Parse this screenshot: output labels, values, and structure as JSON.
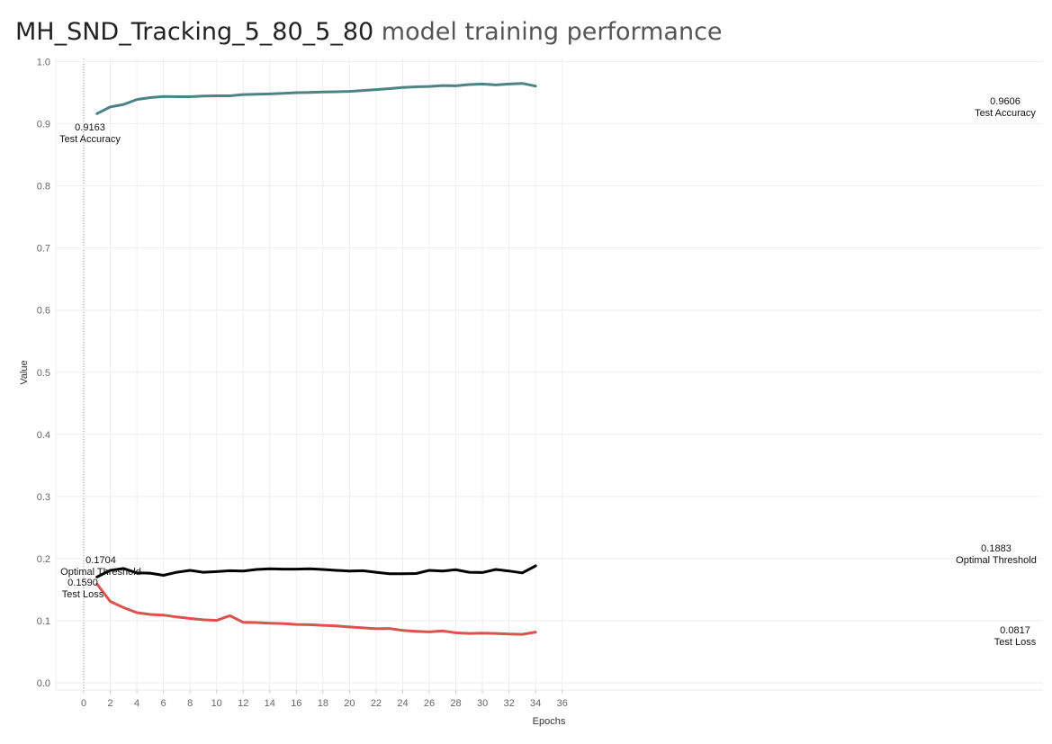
{
  "title_main": "MH_SND_Tracking_5_80_5_80",
  "title_rest": " model training performance",
  "chart_data": {
    "type": "line",
    "xlabel": "Epochs",
    "ylabel": "Value",
    "xlim": [
      -2,
      36.5
    ],
    "ylim": [
      -0.01,
      1.01
    ],
    "xticks": [
      0,
      2,
      4,
      6,
      8,
      10,
      12,
      14,
      16,
      18,
      20,
      22,
      24,
      26,
      28,
      30,
      32,
      34,
      36
    ],
    "yticks": [
      0.0,
      0.1,
      0.2,
      0.3,
      0.4,
      0.5,
      0.6,
      0.7,
      0.8,
      0.9,
      1.0
    ],
    "ytick_labels": [
      "0.0",
      "0.1",
      "0.2",
      "0.3",
      "0.4",
      "0.5",
      "0.6",
      "0.7",
      "0.8",
      "0.9",
      "1.0"
    ],
    "grid": true,
    "x": [
      1,
      2,
      3,
      4,
      5,
      6,
      7,
      8,
      9,
      10,
      11,
      12,
      13,
      14,
      15,
      16,
      17,
      18,
      19,
      20,
      21,
      22,
      23,
      24,
      25,
      26,
      27,
      28,
      29,
      30,
      31,
      32,
      33,
      34
    ],
    "series": [
      {
        "name": "Test Accuracy",
        "color": "#4e8386",
        "values": [
          0.9163,
          0.927,
          0.931,
          0.939,
          0.942,
          0.944,
          0.9435,
          0.9435,
          0.9445,
          0.945,
          0.945,
          0.947,
          0.9475,
          0.948,
          0.949,
          0.95,
          0.9505,
          0.951,
          0.9515,
          0.952,
          0.9535,
          0.955,
          0.9565,
          0.9585,
          0.9595,
          0.96,
          0.9615,
          0.961,
          0.963,
          0.964,
          0.9625,
          0.964,
          0.965,
          0.9606
        ],
        "start_label": [
          "0.9163",
          "Test Accuracy"
        ],
        "end_label": [
          "0.9606",
          "Test Accuracy"
        ]
      },
      {
        "name": "Optimal Threshold",
        "color": "#000000",
        "values": [
          0.1704,
          0.181,
          0.184,
          0.177,
          0.1765,
          0.173,
          0.178,
          0.181,
          0.178,
          0.179,
          0.1805,
          0.18,
          0.1825,
          0.1835,
          0.183,
          0.183,
          0.1835,
          0.1825,
          0.181,
          0.18,
          0.1805,
          0.178,
          0.1755,
          0.1755,
          0.176,
          0.181,
          0.18,
          0.182,
          0.178,
          0.1775,
          0.1825,
          0.18,
          0.177,
          0.1883
        ],
        "start_label": [
          "0.1704",
          "Optimal Threshold"
        ],
        "end_label": [
          "0.1883",
          "Optimal Threshold"
        ]
      },
      {
        "name": "Test Loss",
        "color": "#d9534f",
        "values": [
          0.159,
          0.131,
          0.121,
          0.113,
          0.11,
          0.109,
          0.106,
          0.1035,
          0.1015,
          0.1005,
          0.108,
          0.0975,
          0.097,
          0.096,
          0.0955,
          0.094,
          0.0935,
          0.0925,
          0.0915,
          0.09,
          0.0885,
          0.087,
          0.0875,
          0.0845,
          0.083,
          0.082,
          0.0835,
          0.0805,
          0.0795,
          0.08,
          0.0795,
          0.0785,
          0.078,
          0.0817
        ],
        "start_label": [
          "0.1590",
          "Test Loss"
        ],
        "end_label": [
          "0.0817",
          "Test Loss"
        ]
      }
    ]
  }
}
